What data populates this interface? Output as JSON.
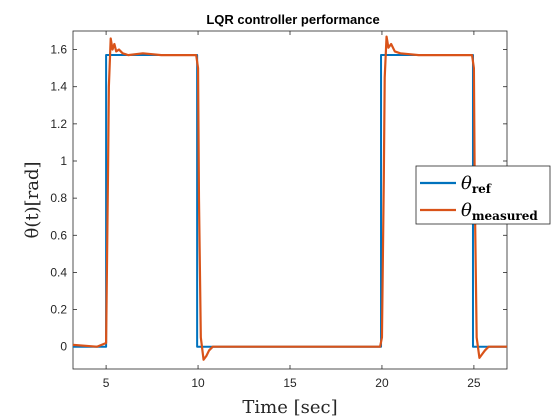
{
  "chart_data": {
    "type": "line",
    "title": "LQR controller performance",
    "xlabel": "Time [sec]",
    "ylabel": "θ(t)[rad]",
    "xlim": [
      3.2,
      26.8
    ],
    "ylim": [
      -0.12,
      1.7
    ],
    "xticks": [
      5,
      10,
      15,
      20,
      25
    ],
    "yticks": [
      0,
      0.2,
      0.4,
      0.6,
      0.8,
      1,
      1.2,
      1.4,
      1.6
    ],
    "grid": false,
    "legend": "right",
    "series": [
      {
        "name": "θref",
        "legend_main": "θ",
        "legend_sub": "ref",
        "color": "#0072BD",
        "x": [
          3.2,
          5.0,
          5.0,
          9.95,
          9.95,
          19.95,
          19.95,
          24.95,
          24.95,
          26.8
        ],
        "y": [
          0,
          0,
          1.5708,
          1.5708,
          0,
          0,
          1.5708,
          1.5708,
          0,
          0
        ]
      },
      {
        "name": "θmeasured",
        "legend_main": "θ",
        "legend_sub": "measured",
        "color": "#D95319",
        "x": [
          3.2,
          4.5,
          5.0,
          5.1,
          5.15,
          5.25,
          5.35,
          5.45,
          5.55,
          5.7,
          5.9,
          6.2,
          7.0,
          8.0,
          9.0,
          9.9,
          10.0,
          10.05,
          10.15,
          10.3,
          10.45,
          10.6,
          10.8,
          11.2,
          12.0,
          15.0,
          18.0,
          19.9,
          20.0,
          20.1,
          20.15,
          20.25,
          20.35,
          20.5,
          20.7,
          21.0,
          22.0,
          23.0,
          24.0,
          24.9,
          25.0,
          25.05,
          25.15,
          25.3,
          25.45,
          25.6,
          25.8,
          26.2,
          26.8
        ],
        "y": [
          0.01,
          0.0,
          0.02,
          0.9,
          1.4,
          1.66,
          1.6,
          1.63,
          1.59,
          1.6,
          1.58,
          1.57,
          1.58,
          1.57,
          1.57,
          1.57,
          1.5,
          0.8,
          0.05,
          -0.07,
          -0.05,
          -0.02,
          0.0,
          0.0,
          0.0,
          0.0,
          0.0,
          0.0,
          0.05,
          0.9,
          1.45,
          1.67,
          1.61,
          1.63,
          1.59,
          1.58,
          1.57,
          1.57,
          1.57,
          1.57,
          1.5,
          0.8,
          0.05,
          -0.06,
          -0.04,
          -0.02,
          0.0,
          0.0,
          0.0
        ]
      }
    ]
  }
}
